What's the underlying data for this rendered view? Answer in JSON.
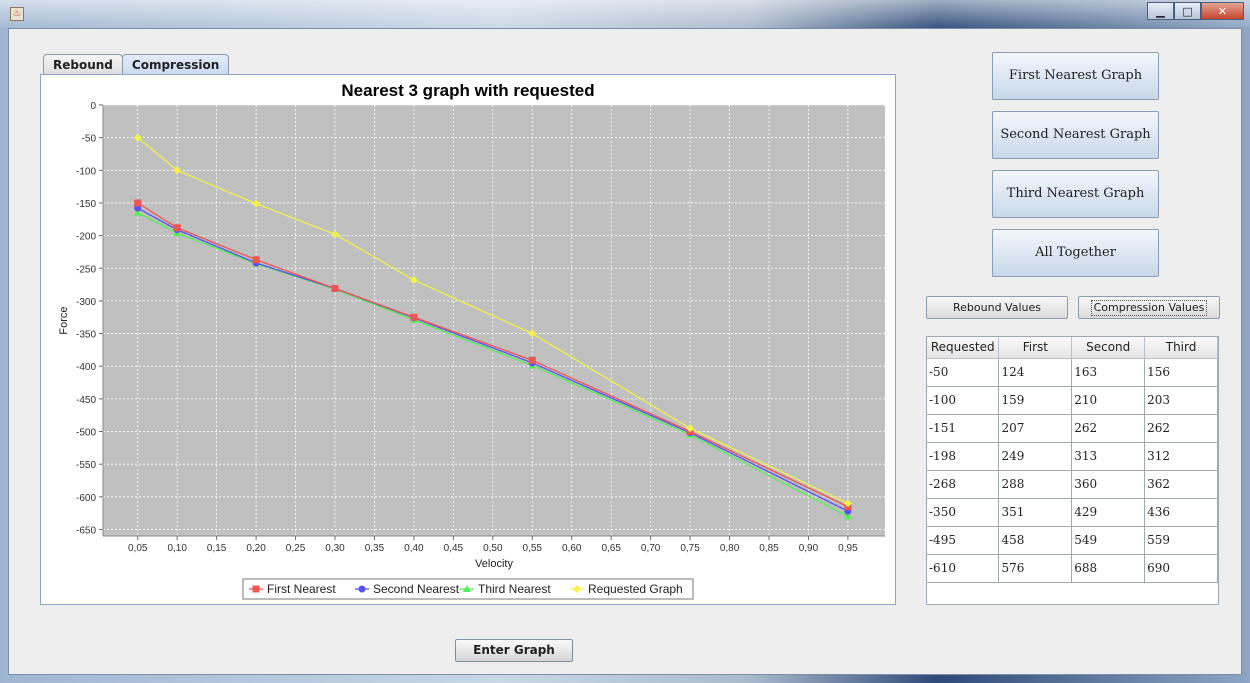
{
  "window": {
    "icon": "java-icon",
    "controls": [
      "minimize",
      "maximize",
      "close"
    ]
  },
  "tabs": [
    {
      "label": "Rebound",
      "active": false
    },
    {
      "label": "Compression",
      "active": true
    }
  ],
  "right_buttons": {
    "first": "First Nearest Graph",
    "second": "Second Nearest Graph",
    "third": "Third Nearest Graph",
    "all": "All Together"
  },
  "value_buttons": {
    "rebound": "Rebound Values",
    "compression": "Compression Values"
  },
  "table": {
    "headers": [
      "Requested",
      "First",
      "Second",
      "Third"
    ],
    "rows": [
      [
        "-50",
        "124",
        "163",
        "156"
      ],
      [
        "-100",
        "159",
        "210",
        "203"
      ],
      [
        "-151",
        "207",
        "262",
        "262"
      ],
      [
        "-198",
        "249",
        "313",
        "312"
      ],
      [
        "-268",
        "288",
        "360",
        "362"
      ],
      [
        "-350",
        "351",
        "429",
        "436"
      ],
      [
        "-495",
        "458",
        "549",
        "559"
      ],
      [
        "-610",
        "576",
        "688",
        "690"
      ]
    ]
  },
  "enter_button": "Enter Graph",
  "chart_data": {
    "type": "line",
    "title": "Nearest 3 graph with requested",
    "xlabel": "Velocity",
    "ylabel": "Force",
    "ylim": [
      -660,
      0
    ],
    "yticks": [
      0,
      -50,
      -100,
      -150,
      -200,
      -250,
      -300,
      -350,
      -400,
      -450,
      -500,
      -550,
      -600,
      -650
    ],
    "xticks": [
      "0,05",
      "0,10",
      "0,15",
      "0,20",
      "0,25",
      "0,30",
      "0,35",
      "0,40",
      "0,45",
      "0,50",
      "0,55",
      "0,60",
      "0,65",
      "0,70",
      "0,75",
      "0,80",
      "0,85",
      "0,90",
      "0,95"
    ],
    "x": [
      0.05,
      0.1,
      0.2,
      0.3,
      0.4,
      0.55,
      0.75,
      0.95
    ],
    "grid": true,
    "legend_position": "bottom",
    "plot_background": "#c0c0c0",
    "series": [
      {
        "name": "First Nearest",
        "color": "#ee5555",
        "marker": "square",
        "values": [
          -150,
          -188,
          -237,
          -281,
          -325,
          -391,
          -500,
          -615
        ]
      },
      {
        "name": "Second Nearest",
        "color": "#5555ee",
        "marker": "circle",
        "values": [
          -158,
          -191,
          -242,
          -281,
          -326,
          -395,
          -502,
          -622
        ]
      },
      {
        "name": "Third Nearest",
        "color": "#55ee55",
        "marker": "triangle",
        "values": [
          -165,
          -196,
          -243,
          -282,
          -329,
          -399,
          -505,
          -630
        ]
      },
      {
        "name": "Requested Graph",
        "color": "#f2f24a",
        "marker": "diamond",
        "values": [
          -50,
          -100,
          -151,
          -198,
          -268,
          -350,
          -495,
          -610
        ]
      }
    ]
  }
}
